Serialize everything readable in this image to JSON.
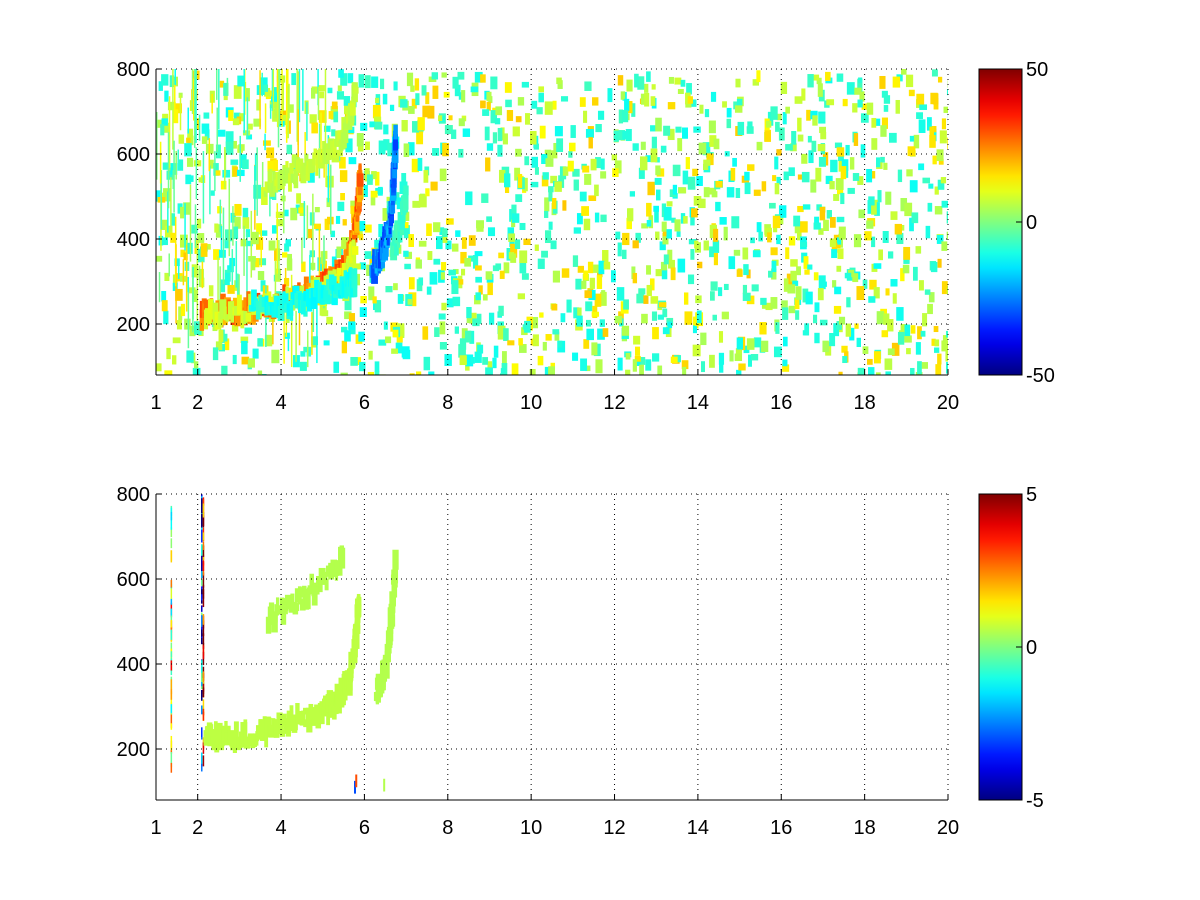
{
  "chart_data": [
    {
      "type": "heatmap",
      "title": "",
      "xlabel": "",
      "ylabel": "",
      "xlim": [
        1,
        20
      ],
      "ylim": [
        80,
        800
      ],
      "xticks": [
        1,
        2,
        4,
        6,
        8,
        10,
        12,
        14,
        16,
        18,
        20
      ],
      "xtick_labels": [
        "1",
        "2",
        "4",
        "6",
        "8",
        "10",
        "12",
        "14",
        "16",
        "18",
        "20"
      ],
      "yticks": [
        200,
        400,
        600,
        800
      ],
      "ytick_labels": [
        "200",
        "400",
        "600",
        "800"
      ],
      "grid": true,
      "colormap": "jet",
      "clim": [
        -50,
        50
      ],
      "colorbar_ticks": [
        -50,
        0,
        50
      ],
      "colorbar_labels": [
        "-50",
        "0",
        "50"
      ],
      "features": [
        {
          "shape": "curve",
          "value": 30,
          "points": [
            [
              2.1,
              228
            ],
            [
              2.5,
              228
            ],
            [
              3.0,
              232
            ],
            [
              3.5,
              242
            ],
            [
              4.0,
              255
            ],
            [
              4.5,
              272
            ],
            [
              5.0,
              292
            ],
            [
              5.3,
              310
            ],
            [
              5.5,
              330
            ],
            [
              5.65,
              360
            ],
            [
              5.75,
              400
            ],
            [
              5.82,
              450
            ],
            [
              5.87,
              500
            ],
            [
              5.9,
              550
            ]
          ]
        },
        {
          "shape": "curve",
          "value": 10,
          "points": [
            [
              2.2,
              223
            ],
            [
              3.0,
              228
            ],
            [
              4.0,
              248
            ],
            [
              5.0,
              280
            ],
            [
              5.5,
              310
            ],
            [
              5.8,
              380
            ]
          ]
        },
        {
          "shape": "curve",
          "value": -12,
          "points": [
            [
              3.3,
              238
            ],
            [
              4.0,
              240
            ],
            [
              4.5,
              255
            ],
            [
              5.0,
              272
            ],
            [
              5.5,
              290
            ],
            [
              5.8,
              300
            ]
          ]
        },
        {
          "shape": "curve",
          "value": 8,
          "points": [
            [
              3.6,
              520
            ],
            [
              4.0,
              540
            ],
            [
              4.5,
              565
            ],
            [
              5.0,
              595
            ],
            [
              5.4,
              625
            ],
            [
              5.7,
              690
            ],
            [
              5.8,
              770
            ]
          ]
        },
        {
          "shape": "curve",
          "value": -30,
          "points": [
            [
              6.2,
              330
            ],
            [
              6.35,
              345
            ],
            [
              6.45,
              370
            ],
            [
              6.55,
              410
            ],
            [
              6.62,
              450
            ],
            [
              6.68,
              500
            ],
            [
              6.72,
              570
            ],
            [
              6.75,
              650
            ]
          ]
        },
        {
          "shape": "curve",
          "value": -8,
          "points": [
            [
              6.7,
              380
            ],
            [
              6.85,
              420
            ],
            [
              6.95,
              470
            ],
            [
              7.0,
              520
            ]
          ]
        }
      ]
    },
    {
      "type": "heatmap",
      "title": "",
      "xlabel": "",
      "ylabel": "",
      "xlim": [
        1,
        20
      ],
      "ylim": [
        80,
        800
      ],
      "xticks": [
        1,
        2,
        4,
        6,
        8,
        10,
        12,
        14,
        16,
        18,
        20
      ],
      "xtick_labels": [
        "1",
        "2",
        "4",
        "6",
        "8",
        "10",
        "12",
        "14",
        "16",
        "18",
        "20"
      ],
      "yticks": [
        200,
        400,
        600,
        800
      ],
      "ytick_labels": [
        "200",
        "400",
        "600",
        "800"
      ],
      "grid": true,
      "colormap": "jet",
      "clim": [
        -5,
        5
      ],
      "colorbar_ticks": [
        -5,
        0,
        5
      ],
      "colorbar_labels": [
        "-5",
        "0",
        "5"
      ],
      "features": [
        {
          "shape": "curve",
          "value": 0.6,
          "points": [
            [
              2.2,
              225
            ],
            [
              2.5,
              225
            ],
            [
              3.0,
              228
            ],
            [
              3.5,
              238
            ],
            [
              4.0,
              252
            ],
            [
              4.5,
              270
            ],
            [
              5.0,
              290
            ],
            [
              5.3,
              310
            ],
            [
              5.5,
              335
            ],
            [
              5.65,
              370
            ],
            [
              5.75,
              420
            ],
            [
              5.82,
              480
            ],
            [
              5.87,
              550
            ]
          ]
        },
        {
          "shape": "curve",
          "value": 0.5,
          "points": [
            [
              3.7,
              510
            ],
            [
              4.2,
              535
            ],
            [
              4.7,
              570
            ],
            [
              5.2,
              610
            ],
            [
              5.5,
              650
            ]
          ]
        },
        {
          "shape": "curve",
          "value": 0.5,
          "points": [
            [
              6.3,
              330
            ],
            [
              6.45,
              370
            ],
            [
              6.55,
              420
            ],
            [
              6.62,
              480
            ],
            [
              6.7,
              560
            ],
            [
              6.75,
              650
            ]
          ]
        }
      ]
    }
  ]
}
